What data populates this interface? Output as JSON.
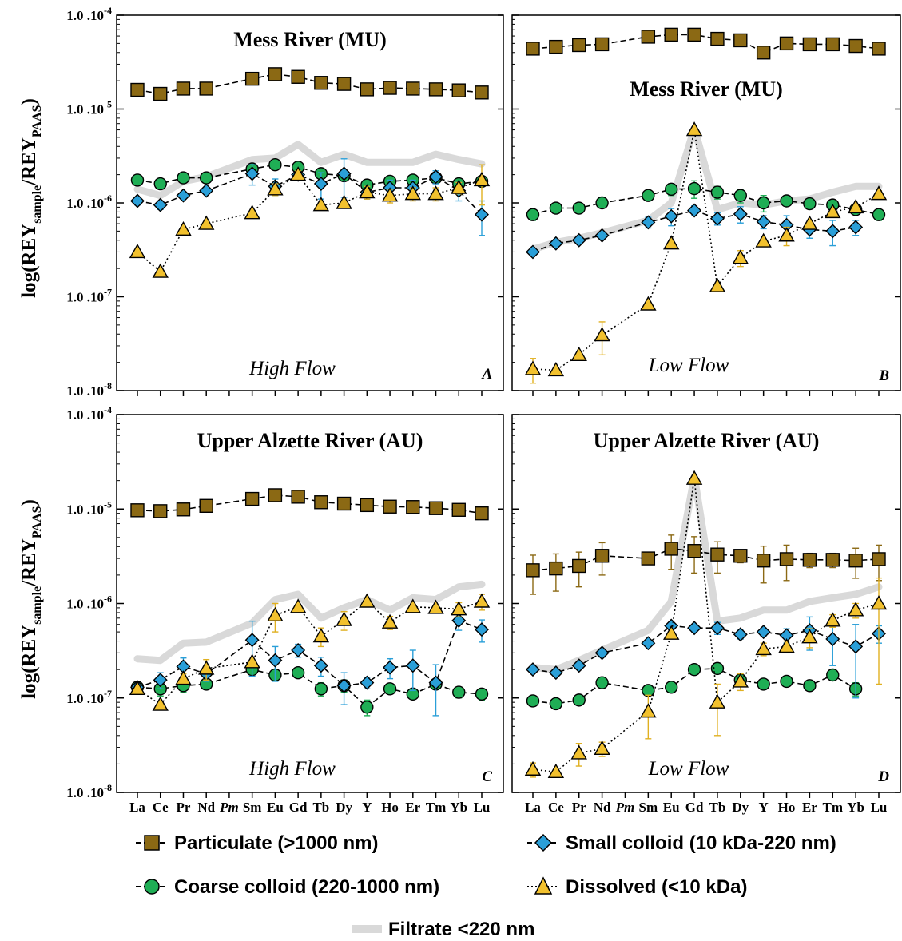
{
  "legend": {
    "particulate": "Particulate (>1000 nm)",
    "small_colloid": "Small colloid (10 kDa-220 nm)",
    "coarse_colloid": "Coarse colloid (220-1000 nm)",
    "dissolved": "Dissolved (<10 kDa)",
    "filtrate": "Filtrate <220 nm"
  },
  "y_label": {
    "main": "log(REY",
    "sub1": "sample",
    "mid": "/REY",
    "sub2": "PAAS",
    "close": ")"
  },
  "colors": {
    "particulate": "#8b6914",
    "coarse_colloid": "#1fae55",
    "small_colloid": "#2a9fd8",
    "dissolved": "#f2c12e",
    "filtrate": "#d9d9d9",
    "dissolved_err": "#e0b020",
    "small_err": "#2a9fd8",
    "particulate_err": "#8b6914",
    "coarse_err": "#1fae55"
  },
  "chart_data": [
    {
      "panel": "A",
      "type": "line",
      "title": "Mess River (MU)",
      "annotation": "High Flow",
      "yscale": "log",
      "ylim": [
        1e-08,
        0.0001
      ],
      "yticks": [
        "1.0 .10-4",
        "1.0 .10-5",
        "1.0 .10-6",
        "1.0 .10-7",
        "1.0 .10-8"
      ],
      "categories": [
        "La",
        "Ce",
        "Pr",
        "Nd",
        "Pm",
        "Sm",
        "Eu",
        "Gd",
        "Tb",
        "Dy",
        "Y",
        "Ho",
        "Er",
        "Tm",
        "Yb",
        "Lu"
      ],
      "series": [
        {
          "key": "filtrate",
          "values": [
            1.4e-06,
            1.2e-06,
            1.7e-06,
            1.9e-06,
            null,
            2.9e-06,
            3e-06,
            4.2e-06,
            2.7e-06,
            3.3e-06,
            2.7e-06,
            2.7e-06,
            2.7e-06,
            3.3e-06,
            2.9e-06,
            2.6e-06
          ],
          "errors": null
        },
        {
          "key": "particulate",
          "values": [
            1.6e-05,
            1.45e-05,
            1.65e-05,
            1.65e-05,
            null,
            2.1e-05,
            2.35e-05,
            2.2e-05,
            1.9e-05,
            1.85e-05,
            1.62e-05,
            1.68e-05,
            1.65e-05,
            1.62e-05,
            1.58e-05,
            1.5e-05
          ],
          "errors": [
            6e-07,
            6e-07,
            6e-07,
            6e-07,
            null,
            8e-07,
            8e-07,
            8e-07,
            6e-07,
            6e-07,
            6e-07,
            6e-07,
            6e-07,
            6e-07,
            6e-07,
            6e-07
          ]
        },
        {
          "key": "coarse_colloid",
          "values": [
            1.75e-06,
            1.6e-06,
            1.85e-06,
            1.85e-06,
            null,
            2.3e-06,
            2.55e-06,
            2.4e-06,
            2.05e-06,
            1.95e-06,
            1.55e-06,
            1.7e-06,
            1.75e-06,
            1.85e-06,
            1.6e-06,
            1.7e-06
          ],
          "errors": [
            1e-07,
            1e-07,
            1e-07,
            1e-07,
            null,
            1e-07,
            1e-07,
            1e-07,
            1e-07,
            1e-07,
            1e-07,
            1e-07,
            1e-07,
            1e-07,
            1e-07,
            1e-07
          ]
        },
        {
          "key": "small_colloid",
          "values": [
            1.05e-06,
            9.5e-07,
            1.2e-06,
            1.35e-06,
            null,
            2.05e-06,
            1.5e-06,
            2e-06,
            1.6e-06,
            2.05e-06,
            1.3e-06,
            1.45e-06,
            1.45e-06,
            1.9e-06,
            1.35e-06,
            7.5e-07
          ],
          "errors": [
            1e-07,
            1e-07,
            1e-07,
            1e-07,
            null,
            5e-07,
            3e-07,
            2e-07,
            5e-07,
            9e-07,
            2e-07,
            3e-07,
            3e-07,
            3e-07,
            3e-07,
            3e-07
          ]
        },
        {
          "key": "dissolved",
          "values": [
            3e-07,
            1.85e-07,
            5.2e-07,
            6e-07,
            null,
            7.8e-07,
            1.4e-06,
            2e-06,
            9.5e-07,
            1e-06,
            1.3e-06,
            1.2e-06,
            1.25e-06,
            1.25e-06,
            1.45e-06,
            1.75e-06
          ],
          "errors": [
            null,
            null,
            null,
            null,
            null,
            null,
            2e-07,
            2e-07,
            null,
            null,
            2e-07,
            2e-07,
            2e-07,
            2e-07,
            2e-07,
            8e-07
          ]
        }
      ]
    },
    {
      "panel": "B",
      "type": "line",
      "title": "Mess River (MU)",
      "annotation": "Low Flow",
      "yscale": "log",
      "ylim": [
        1e-08,
        0.0001
      ],
      "categories": [
        "La",
        "Ce",
        "Pr",
        "Nd",
        "Pm",
        "Sm",
        "Eu",
        "Gd",
        "Tb",
        "Dy",
        "Y",
        "Ho",
        "Er",
        "Tm",
        "Yb",
        "Lu"
      ],
      "series": [
        {
          "key": "filtrate",
          "values": [
            3.2e-07,
            3.8e-07,
            4.2e-07,
            4.8e-07,
            null,
            6.5e-07,
            1e-06,
            6.2e-06,
            8.5e-07,
            1e-06,
            9.5e-07,
            1.05e-06,
            1.1e-06,
            1.3e-06,
            1.5e-06,
            1.5e-06
          ],
          "errors": null
        },
        {
          "key": "particulate",
          "values": [
            4.4e-05,
            4.6e-05,
            4.8e-05,
            4.9e-05,
            null,
            5.9e-05,
            6.2e-05,
            6.2e-05,
            5.6e-05,
            5.4e-05,
            4e-05,
            5e-05,
            4.9e-05,
            4.9e-05,
            4.7e-05,
            4.4e-05
          ],
          "errors": [
            2e-06,
            5e-06,
            2e-06,
            2e-06,
            null,
            3e-06,
            3e-06,
            3e-06,
            2e-06,
            2e-06,
            2e-06,
            2e-06,
            2e-06,
            2e-06,
            2e-06,
            2e-06
          ]
        },
        {
          "key": "coarse_colloid",
          "values": [
            7.5e-07,
            8.8e-07,
            8.8e-07,
            1e-06,
            null,
            1.2e-06,
            1.4e-06,
            1.42e-06,
            1.3e-06,
            1.2e-06,
            1e-06,
            1.05e-06,
            9.8e-07,
            9.5e-07,
            8.5e-07,
            7.5e-07
          ],
          "errors": [
            1e-07,
            1e-07,
            1e-07,
            1e-07,
            null,
            1e-07,
            2e-07,
            3e-07,
            2e-07,
            2e-07,
            2e-07,
            1e-07,
            1e-07,
            1e-07,
            1e-07,
            1e-07
          ]
        },
        {
          "key": "small_colloid",
          "values": [
            3e-07,
            3.7e-07,
            4e-07,
            4.5e-07,
            null,
            6.2e-07,
            7.2e-07,
            8.3e-07,
            6.8e-07,
            7.6e-07,
            6.3e-07,
            5.8e-07,
            5.2e-07,
            5e-07,
            5.5e-07,
            null
          ],
          "errors": [
            2e-08,
            2e-08,
            2e-08,
            2e-08,
            null,
            8e-08,
            1.5e-07,
            1e-07,
            1e-07,
            1.5e-07,
            1e-07,
            1.5e-07,
            1e-07,
            1.5e-07,
            1e-07,
            null
          ]
        },
        {
          "key": "dissolved",
          "values": [
            1.7e-08,
            1.65e-08,
            2.4e-08,
            3.9e-08,
            null,
            8.3e-08,
            3.7e-07,
            6e-06,
            1.3e-07,
            2.6e-07,
            3.9e-07,
            4.5e-07,
            6e-07,
            8e-07,
            9e-07,
            1.25e-06
          ],
          "errors": [
            5e-09,
            null,
            null,
            1.5e-08,
            null,
            null,
            null,
            null,
            null,
            5e-08,
            null,
            1e-07,
            null,
            null,
            null,
            1e-07
          ]
        }
      ]
    },
    {
      "panel": "C",
      "type": "line",
      "title": "Upper Alzette River (AU)",
      "annotation": "High Flow",
      "yscale": "log",
      "ylim": [
        1e-08,
        0.0001
      ],
      "yticks": [
        "1.0 .10-4",
        "1.0 .10-5",
        "1.0 .10-6",
        "1.0 .10-7",
        "1.0 .10-8"
      ],
      "categories": [
        "La",
        "Ce",
        "Pr",
        "Nd",
        "Pm",
        "Sm",
        "Eu",
        "Gd",
        "Tb",
        "Dy",
        "Y",
        "Ho",
        "Er",
        "Tm",
        "Yb",
        "Lu"
      ],
      "series": [
        {
          "key": "filtrate",
          "values": [
            2.6e-07,
            2.5e-07,
            3.8e-07,
            3.9e-07,
            null,
            6.2e-07,
            1.1e-06,
            1.25e-06,
            7e-07,
            9e-07,
            1.1e-06,
            8.5e-07,
            1.15e-06,
            1.1e-06,
            1.5e-06,
            1.6e-06
          ],
          "errors": null
        },
        {
          "key": "particulate",
          "values": [
            9.7e-06,
            9.5e-06,
            9.9e-06,
            1.08e-05,
            null,
            1.28e-05,
            1.4e-05,
            1.35e-05,
            1.18e-05,
            1.14e-05,
            1.1e-05,
            1.06e-05,
            1.05e-05,
            1.02e-05,
            9.8e-06,
            9e-06
          ],
          "errors": [
            3e-07,
            3e-07,
            3e-07,
            3e-07,
            null,
            3e-07,
            3e-07,
            3e-07,
            3e-07,
            3e-07,
            3e-07,
            3e-07,
            3e-07,
            3e-07,
            3e-07,
            3e-07
          ]
        },
        {
          "key": "coarse_colloid",
          "values": [
            1.3e-07,
            1.25e-07,
            1.35e-07,
            1.4e-07,
            null,
            2e-07,
            1.75e-07,
            1.85e-07,
            1.25e-07,
            1.35e-07,
            8e-08,
            1.25e-07,
            1.1e-07,
            1.4e-07,
            1.15e-07,
            1.1e-07
          ],
          "errors": [
            1e-08,
            2e-08,
            2e-08,
            1.5e-08,
            null,
            2e-08,
            2e-08,
            2e-08,
            2e-08,
            2e-08,
            1.5e-08,
            1e-08,
            1e-08,
            1e-08,
            1.5e-08,
            1.5e-08
          ]
        },
        {
          "key": "small_colloid",
          "values": [
            1.3e-07,
            1.55e-07,
            2.15e-07,
            1.8e-07,
            null,
            4.1e-07,
            2.5e-07,
            3.2e-07,
            2.2e-07,
            1.35e-07,
            1.45e-07,
            2.1e-07,
            2.2e-07,
            1.45e-07,
            6.6e-07,
            5.3e-07
          ],
          "errors": [
            1e-08,
            3e-08,
            5e-08,
            3e-08,
            null,
            2.4e-07,
            1e-07,
            5e-08,
            5e-08,
            5e-08,
            2e-08,
            5e-08,
            1e-07,
            8e-08,
            1.4e-07,
            1.4e-07
          ]
        },
        {
          "key": "dissolved",
          "values": [
            1.25e-07,
            8.5e-08,
            1.6e-07,
            2.05e-07,
            null,
            2.4e-07,
            7.5e-07,
            9.2e-07,
            4.5e-07,
            6.7e-07,
            1.05e-06,
            6.3e-07,
            9.2e-07,
            9e-07,
            8.7e-07,
            1.05e-06
          ],
          "errors": [
            null,
            null,
            2e-08,
            5e-08,
            null,
            null,
            2.5e-07,
            null,
            1e-07,
            1.5e-07,
            null,
            1e-07,
            null,
            null,
            1.5e-07,
            2e-07
          ]
        }
      ]
    },
    {
      "panel": "D",
      "type": "line",
      "title": "Upper Alzette River (AU)",
      "annotation": "Low Flow",
      "yscale": "log",
      "ylim": [
        1e-08,
        0.0001
      ],
      "categories": [
        "La",
        "Ce",
        "Pr",
        "Nd",
        "Pm",
        "Sm",
        "Eu",
        "Gd",
        "Tb",
        "Dy",
        "Y",
        "Ho",
        "Er",
        "Tm",
        "Yb",
        "Lu"
      ],
      "series": [
        {
          "key": "filtrate",
          "values": [
            2.1e-07,
            2e-07,
            2.5e-07,
            3.2e-07,
            null,
            5.2e-07,
            1.05e-06,
            2.2e-05,
            6.5e-07,
            7e-07,
            8.5e-07,
            8.5e-07,
            1.05e-06,
            1.15e-06,
            1.25e-06,
            1.5e-06
          ],
          "errors": null
        },
        {
          "key": "particulate",
          "values": [
            2.25e-06,
            2.35e-06,
            2.5e-06,
            3.2e-06,
            null,
            3e-06,
            3.8e-06,
            3.6e-06,
            3.3e-06,
            3.2e-06,
            2.85e-06,
            2.95e-06,
            2.9e-06,
            2.9e-06,
            2.85e-06,
            2.95e-06
          ],
          "errors": [
            1e-06,
            1e-06,
            1e-06,
            1.2e-06,
            null,
            4e-07,
            1.5e-06,
            1.5e-06,
            1.2e-06,
            5e-07,
            1.2e-06,
            1.2e-06,
            5e-07,
            5e-07,
            1e-06,
            1.2e-06
          ]
        },
        {
          "key": "coarse_colloid",
          "values": [
            9.3e-08,
            8.7e-08,
            9.5e-08,
            1.45e-07,
            null,
            1.2e-07,
            1.3e-07,
            2e-07,
            2.05e-07,
            1.55e-07,
            1.4e-07,
            1.5e-07,
            1.35e-07,
            1.75e-07,
            1.25e-07,
            null
          ],
          "errors": [
            1e-08,
            1e-08,
            1e-08,
            1.5e-08,
            null,
            1e-08,
            1.5e-08,
            2e-08,
            2.5e-08,
            2e-08,
            1.5e-08,
            1.5e-08,
            1.5e-08,
            2e-08,
            2e-08,
            null
          ]
        },
        {
          "key": "small_colloid",
          "values": [
            2e-07,
            1.85e-07,
            2.2e-07,
            3e-07,
            null,
            3.8e-07,
            5.8e-07,
            5.5e-07,
            5.5e-07,
            4.7e-07,
            5e-07,
            4.6e-07,
            5.2e-07,
            4.2e-07,
            3.5e-07,
            4.8e-07
          ],
          "errors": [
            1e-08,
            1e-08,
            2e-08,
            3e-08,
            null,
            3e-08,
            5e-08,
            5e-08,
            8e-08,
            5e-08,
            5e-08,
            8e-08,
            2e-07,
            2e-07,
            2.5e-07,
            1e-07
          ]
        },
        {
          "key": "dissolved",
          "values": [
            1.75e-08,
            1.65e-08,
            2.6e-08,
            2.9e-08,
            null,
            7.2e-08,
            4.8e-07,
            2.1e-05,
            9e-08,
            1.5e-07,
            3.3e-07,
            3.5e-07,
            4.4e-07,
            6.6e-07,
            8.5e-07,
            1e-06
          ],
          "errors": [
            3e-09,
            null,
            7e-09,
            5e-09,
            null,
            3.5e-08,
            null,
            null,
            5e-08,
            3e-08,
            5e-08,
            5e-08,
            1e-07,
            1e-07,
            1.5e-07,
            8.6e-07
          ]
        }
      ]
    }
  ]
}
